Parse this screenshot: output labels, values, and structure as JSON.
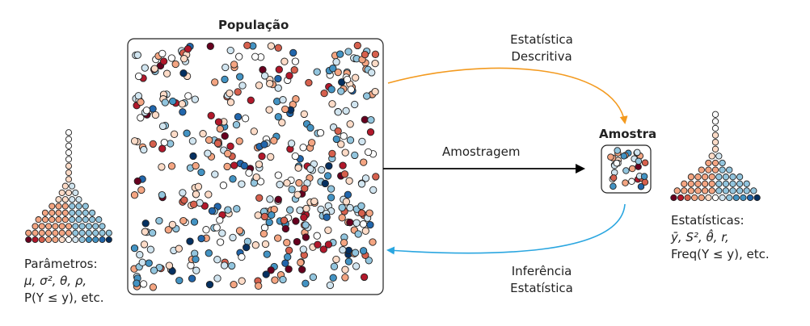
{
  "population": {
    "title": "População"
  },
  "sample": {
    "title": "Amostra"
  },
  "arrows": {
    "descriptive": [
      "Estatística",
      "Descritiva"
    ],
    "sampling": "Amostragem",
    "inference": [
      "Inferência",
      "Estatística"
    ]
  },
  "parameters": {
    "label": "Parâmetros:",
    "line1": "μ, σ², θ, ρ,",
    "line2": "P(Y ≤ y), etc."
  },
  "statistics": {
    "label": "Estatísticas:",
    "line1": "ȳ, S², θ̂, r,",
    "line2": "Freq(Y ≤ y), etc."
  },
  "colors": {
    "palette": [
      "#67001f",
      "#b2182b",
      "#d6604d",
      "#f4a582",
      "#fddbc7",
      "#ffffff",
      "#d1e5f0",
      "#92c5de",
      "#4393c3",
      "#2166ac",
      "#053061"
    ],
    "descriptive_arrow": "#f39a1f",
    "inference_arrow": "#2aa6e0",
    "sampling_arrow": "#000000"
  },
  "histograms": {
    "population_counts": [
      1,
      2,
      3,
      4,
      6,
      9,
      13,
      19,
      23,
      19,
      13,
      9,
      6,
      4,
      3,
      2,
      1
    ],
    "sample_counts": [
      1,
      1,
      2,
      4,
      7,
      10,
      13,
      10,
      7,
      4,
      2,
      1,
      1
    ]
  }
}
